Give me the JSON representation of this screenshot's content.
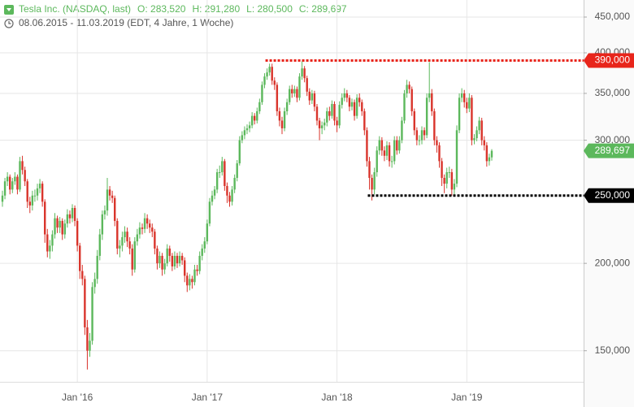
{
  "chart_data": {
    "type": "candlestick",
    "title": "Tesla Inc. (NASDAQ, last)",
    "quote": [
      "O: 283,520",
      "H: 291,280",
      "L: 280,500",
      "C: 289,697"
    ],
    "subtitle": "08.06.2015 - 11.03.2019   (EDT, 4 Jahre, 1 Woche)",
    "log_scale": true,
    "grid": true,
    "up_color": "#5cb85c",
    "down_color": "#d9342b",
    "ylim": [
      135.4,
      476
    ],
    "yticks": [
      {
        "value": 150,
        "label": "150,000"
      },
      {
        "value": 200,
        "label": "200,000"
      },
      {
        "value": 300,
        "label": "300,000"
      },
      {
        "value": 350,
        "label": "350,000"
      },
      {
        "value": 400,
        "label": "400,000"
      },
      {
        "value": 450,
        "label": "450,000"
      }
    ],
    "annotations": [
      {
        "value": 390,
        "label": "390,000",
        "color": "#e8251b"
      },
      {
        "value": 250,
        "label": "250,000",
        "color": "#000000"
      }
    ],
    "last_label": "289,697",
    "categories": [
      null,
      null,
      null,
      null,
      null,
      null,
      null,
      null,
      null,
      null,
      null,
      null,
      null,
      null,
      null,
      null,
      null,
      null,
      null,
      null,
      null,
      null,
      null,
      null,
      null,
      null,
      null,
      null,
      null,
      null,
      "Jan '16",
      null,
      null,
      null,
      null,
      null,
      null,
      null,
      null,
      null,
      null,
      null,
      null,
      null,
      null,
      null,
      null,
      null,
      null,
      null,
      null,
      null,
      null,
      null,
      null,
      null,
      null,
      null,
      null,
      null,
      null,
      null,
      null,
      null,
      null,
      null,
      null,
      null,
      null,
      null,
      null,
      null,
      null,
      null,
      null,
      null,
      null,
      null,
      null,
      null,
      null,
      null,
      "Jan '17",
      null,
      null,
      null,
      null,
      null,
      null,
      null,
      null,
      null,
      null,
      null,
      null,
      null,
      null,
      null,
      null,
      null,
      null,
      null,
      null,
      null,
      null,
      null,
      null,
      null,
      null,
      null,
      null,
      null,
      null,
      null,
      null,
      null,
      null,
      null,
      null,
      null,
      null,
      null,
      null,
      null,
      null,
      null,
      null,
      null,
      null,
      null,
      null,
      null,
      null,
      null,
      "Jan '18",
      null,
      null,
      null,
      null,
      null,
      null,
      null,
      null,
      null,
      null,
      null,
      null,
      null,
      null,
      null,
      null,
      null,
      null,
      null,
      null,
      null,
      null,
      null,
      null,
      null,
      null,
      null,
      null,
      null,
      null,
      null,
      null,
      null,
      null,
      null,
      null,
      null,
      null,
      null,
      null,
      null,
      null,
      null,
      null,
      null,
      null,
      null,
      null,
      null,
      null,
      null,
      "Jan '19",
      null,
      null,
      null,
      null,
      null,
      null,
      null,
      null,
      null,
      null
    ],
    "open": [
      245,
      250,
      262,
      266,
      255,
      262,
      266,
      255,
      280,
      272,
      262,
      245,
      242,
      250,
      250,
      256,
      260,
      245,
      220,
      208,
      212,
      220,
      232,
      225,
      230,
      220,
      228,
      235,
      232,
      240,
      230,
      212,
      195,
      190,
      162,
      150,
      155,
      185,
      190,
      205,
      220,
      235,
      238,
      255,
      250,
      248,
      230,
      210,
      212,
      218,
      222,
      215,
      210,
      196,
      215,
      220,
      225,
      224,
      232,
      228,
      225,
      222,
      210,
      200,
      205,
      196,
      200,
      210,
      205,
      198,
      205,
      200,
      205,
      202,
      192,
      186,
      190,
      188,
      196,
      195,
      205,
      210,
      215,
      228,
      245,
      250,
      255,
      270,
      270,
      280,
      258,
      250,
      245,
      255,
      265,
      278,
      300,
      305,
      310,
      312,
      315,
      325,
      320,
      330,
      340,
      360,
      370,
      375,
      382,
      365,
      360,
      330,
      320,
      312,
      330,
      340,
      355,
      350,
      355,
      345,
      370,
      380,
      368,
      352,
      342,
      350,
      335,
      320,
      312,
      315,
      318,
      330,
      325,
      338,
      320,
      315,
      337,
      345,
      350,
      345,
      335,
      340,
      325,
      345,
      340,
      330,
      310,
      280,
      265,
      255,
      270,
      290,
      300,
      290,
      285,
      295,
      280,
      280,
      300,
      290,
      300,
      320,
      350,
      360,
      355,
      330,
      310,
      300,
      300,
      310,
      305,
      345,
      350,
      330,
      300,
      295,
      280,
      265,
      260,
      270,
      270,
      255,
      260,
      310,
      345,
      350,
      340,
      333,
      345,
      300,
      302,
      310,
      320,
      300,
      295,
      280,
      283.52
    ],
    "high": [
      254,
      265,
      270,
      268,
      265,
      270,
      268,
      284,
      285,
      275,
      264,
      249,
      254,
      255,
      260,
      264,
      262,
      247,
      224,
      216,
      223,
      236,
      234,
      233,
      232,
      231,
      239,
      238,
      243,
      242,
      232,
      214,
      199,
      192,
      166,
      159,
      188,
      194,
      209,
      224,
      238,
      242,
      265,
      258,
      254,
      250,
      232,
      216,
      222,
      226,
      225,
      218,
      213,
      218,
      224,
      229,
      228,
      236,
      235,
      231,
      228,
      224,
      212,
      208,
      207,
      203,
      213,
      212,
      207,
      208,
      207,
      208,
      207,
      204,
      194,
      193,
      192,
      199,
      199,
      208,
      213,
      218,
      231,
      248,
      254,
      258,
      273,
      276,
      284,
      282,
      261,
      253,
      258,
      268,
      281,
      304,
      309,
      314,
      316,
      319,
      329,
      328,
      334,
      344,
      364,
      374,
      380,
      386,
      386,
      369,
      363,
      334,
      324,
      334,
      344,
      359,
      360,
      359,
      358,
      374,
      389,
      383,
      371,
      356,
      354,
      353,
      338,
      323,
      319,
      322,
      334,
      335,
      342,
      341,
      324,
      341,
      350,
      356,
      354,
      348,
      344,
      343,
      349,
      350,
      343,
      333,
      313,
      284,
      268,
      274,
      294,
      304,
      303,
      294,
      299,
      298,
      285,
      304,
      304,
      304,
      324,
      354,
      366,
      364,
      358,
      333,
      313,
      305,
      314,
      313,
      350,
      388,
      355,
      333,
      304,
      298,
      283,
      268,
      274,
      275,
      273,
      264,
      315,
      350,
      356,
      354,
      345,
      350,
      348,
      306,
      314,
      324,
      323,
      304,
      298,
      287,
      291.28
    ],
    "low": [
      241,
      247,
      258,
      251,
      252,
      259,
      251,
      253,
      268,
      258,
      240,
      236,
      238,
      245,
      246,
      252,
      241,
      214,
      204,
      203,
      208,
      217,
      221,
      221,
      216,
      217,
      225,
      228,
      229,
      226,
      208,
      190,
      186,
      158,
      141,
      147,
      153,
      181,
      187,
      202,
      216,
      231,
      234,
      246,
      244,
      226,
      206,
      204,
      208,
      214,
      211,
      206,
      192,
      194,
      212,
      217,
      220,
      221,
      224,
      221,
      218,
      206,
      196,
      197,
      192,
      193,
      198,
      201,
      195,
      196,
      197,
      198,
      199,
      188,
      182,
      183,
      184,
      186,
      192,
      193,
      202,
      207,
      213,
      226,
      242,
      247,
      252,
      265,
      267,
      254,
      244,
      241,
      242,
      252,
      262,
      276,
      297,
      301,
      306,
      308,
      312,
      316,
      317,
      327,
      337,
      356,
      366,
      371,
      360,
      354,
      325,
      314,
      306,
      309,
      326,
      337,
      345,
      346,
      340,
      342,
      366,
      363,
      347,
      337,
      338,
      330,
      315,
      300,
      306,
      310,
      314,
      320,
      322,
      315,
      308,
      312,
      333,
      341,
      340,
      330,
      331,
      320,
      322,
      335,
      325,
      305,
      275,
      255,
      246,
      251,
      266,
      286,
      285,
      280,
      281,
      275,
      274,
      277,
      286,
      287,
      297,
      317,
      345,
      350,
      325,
      305,
      295,
      295,
      296,
      300,
      302,
      340,
      325,
      295,
      288,
      274,
      258,
      252,
      256,
      265,
      250,
      251,
      257,
      307,
      340,
      334,
      328,
      329,
      295,
      296,
      299,
      306,
      295,
      290,
      275,
      276,
      280.5
    ],
    "close": [
      250,
      262,
      266,
      255,
      262,
      266,
      255,
      280,
      272,
      262,
      245,
      242,
      250,
      250,
      256,
      260,
      245,
      220,
      208,
      212,
      220,
      232,
      225,
      230,
      220,
      228,
      235,
      232,
      240,
      230,
      212,
      195,
      190,
      162,
      150,
      155,
      185,
      190,
      205,
      220,
      235,
      238,
      255,
      250,
      248,
      230,
      210,
      212,
      218,
      222,
      215,
      210,
      196,
      215,
      220,
      225,
      224,
      232,
      228,
      225,
      222,
      210,
      200,
      205,
      196,
      200,
      210,
      205,
      198,
      205,
      200,
      205,
      202,
      192,
      186,
      190,
      188,
      196,
      195,
      205,
      210,
      215,
      228,
      245,
      250,
      255,
      270,
      270,
      280,
      258,
      250,
      245,
      255,
      265,
      278,
      300,
      305,
      310,
      312,
      315,
      325,
      320,
      330,
      340,
      360,
      370,
      375,
      382,
      365,
      360,
      330,
      320,
      312,
      330,
      340,
      355,
      350,
      355,
      345,
      370,
      380,
      368,
      352,
      342,
      350,
      335,
      320,
      312,
      315,
      318,
      330,
      325,
      338,
      320,
      315,
      337,
      345,
      350,
      345,
      335,
      340,
      325,
      345,
      340,
      330,
      310,
      280,
      265,
      255,
      270,
      290,
      300,
      290,
      285,
      295,
      280,
      280,
      300,
      290,
      300,
      320,
      350,
      360,
      355,
      330,
      310,
      300,
      300,
      310,
      305,
      345,
      350,
      330,
      300,
      295,
      280,
      265,
      260,
      270,
      270,
      255,
      260,
      310,
      345,
      350,
      340,
      333,
      345,
      300,
      302,
      310,
      320,
      300,
      295,
      280,
      283.52,
      289.697
    ]
  }
}
